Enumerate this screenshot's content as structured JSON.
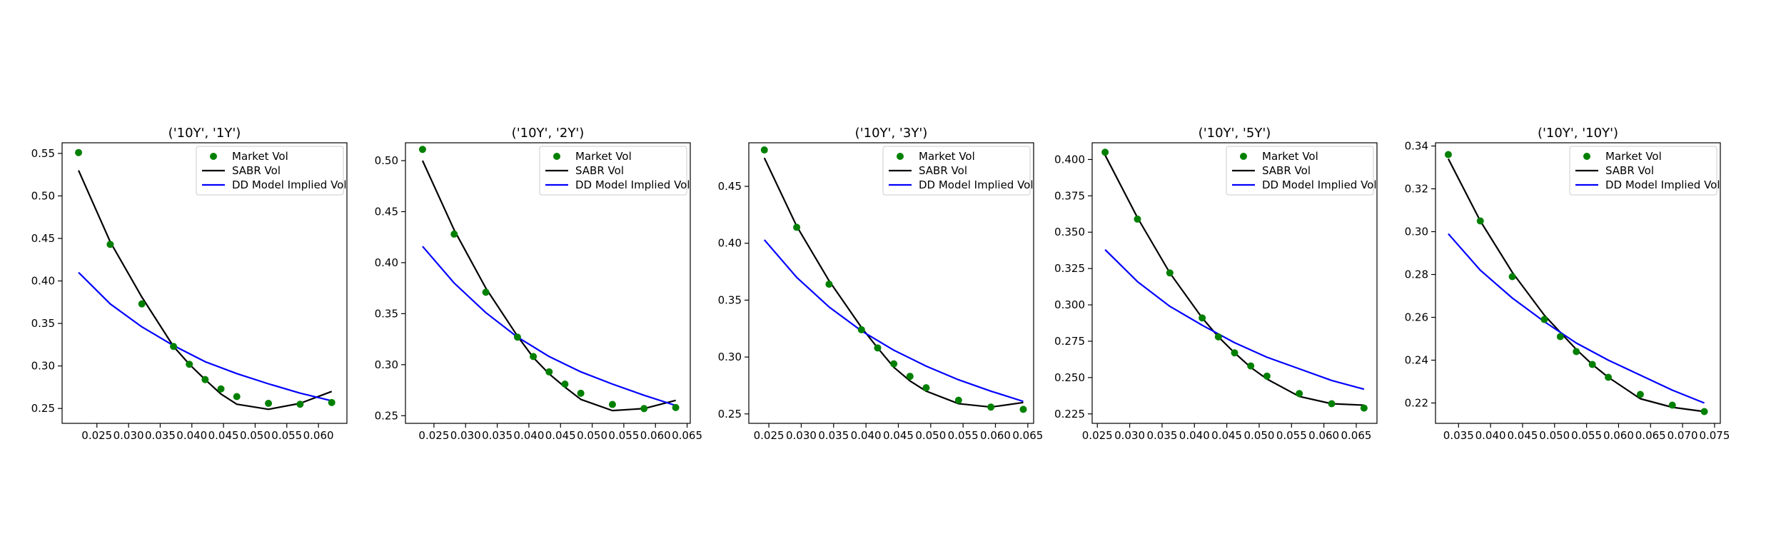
{
  "colors": {
    "market": "#008000",
    "sabr": "#000000",
    "dd": "#0000ff",
    "axes": "#000000",
    "background": "#ffffff"
  },
  "legend": {
    "placement": "upper-right",
    "entries": [
      "Market Vol",
      "SABR Vol",
      "DD Model Implied Vol"
    ]
  },
  "chart_data": [
    {
      "type": "line",
      "title": "('10Y', '1Y')",
      "xlabel": "",
      "ylabel": "",
      "xlim": [
        0.0195,
        0.0645
      ],
      "ylim": [
        0.2325,
        0.5625
      ],
      "xticks": [
        0.025,
        0.03,
        0.035,
        0.04,
        0.045,
        0.05,
        0.055,
        0.06
      ],
      "xtick_labels": [
        "0.025",
        "0.030",
        "0.035",
        "0.040",
        "0.045",
        "0.050",
        "0.055",
        "0.060"
      ],
      "yticks": [
        0.25,
        0.3,
        0.35,
        0.4,
        0.45,
        0.5,
        0.55
      ],
      "ytick_labels": [
        "0.25",
        "0.30",
        "0.35",
        "0.40",
        "0.45",
        "0.50",
        "0.55"
      ],
      "series": [
        {
          "name": "Market Vol",
          "kind": "scatter",
          "x": [
            0.0221,
            0.0271,
            0.0321,
            0.0371,
            0.0396,
            0.0421,
            0.0446,
            0.0471,
            0.0521,
            0.0571,
            0.0621
          ],
          "y": [
            0.551,
            0.443,
            0.373,
            0.323,
            0.302,
            0.284,
            0.273,
            0.264,
            0.256,
            0.255,
            0.257
          ]
        },
        {
          "name": "SABR Vol",
          "kind": "line",
          "x": [
            0.0221,
            0.0271,
            0.0321,
            0.0371,
            0.0396,
            0.0421,
            0.0446,
            0.0471,
            0.0521,
            0.0571,
            0.0621
          ],
          "y": [
            0.53,
            0.446,
            0.381,
            0.323,
            0.302,
            0.284,
            0.267,
            0.255,
            0.249,
            0.256,
            0.27
          ]
        },
        {
          "name": "DD Model Implied Vol",
          "kind": "line",
          "x": [
            0.0221,
            0.0271,
            0.0321,
            0.0371,
            0.0421,
            0.0471,
            0.0521,
            0.0571,
            0.0621
          ],
          "y": [
            0.41,
            0.373,
            0.346,
            0.324,
            0.305,
            0.291,
            0.279,
            0.268,
            0.259
          ]
        }
      ]
    },
    {
      "type": "line",
      "title": "('10Y', '2Y')",
      "xlabel": "",
      "ylabel": "",
      "xlim": [
        0.0205,
        0.0655
      ],
      "ylim": [
        0.2425,
        0.5175
      ],
      "xticks": [
        0.025,
        0.03,
        0.035,
        0.04,
        0.045,
        0.05,
        0.055,
        0.06,
        0.065
      ],
      "xtick_labels": [
        "0.025",
        "0.030",
        "0.035",
        "0.040",
        "0.045",
        "0.050",
        "0.055",
        "0.060",
        "0.065"
      ],
      "yticks": [
        0.25,
        0.3,
        0.35,
        0.4,
        0.45,
        0.5
      ],
      "ytick_labels": [
        "0.25",
        "0.30",
        "0.35",
        "0.40",
        "0.45",
        "0.50"
      ],
      "series": [
        {
          "name": "Market Vol",
          "kind": "scatter",
          "x": [
            0.0232,
            0.0282,
            0.0332,
            0.0382,
            0.0407,
            0.0432,
            0.0457,
            0.0482,
            0.0532,
            0.0582,
            0.0632
          ],
          "y": [
            0.511,
            0.428,
            0.371,
            0.327,
            0.308,
            0.293,
            0.281,
            0.272,
            0.261,
            0.257,
            0.258
          ]
        },
        {
          "name": "SABR Vol",
          "kind": "line",
          "x": [
            0.0232,
            0.0282,
            0.0332,
            0.0382,
            0.0407,
            0.0432,
            0.0457,
            0.0482,
            0.0532,
            0.0582,
            0.0632
          ],
          "y": [
            0.5,
            0.432,
            0.375,
            0.328,
            0.307,
            0.291,
            0.278,
            0.266,
            0.255,
            0.257,
            0.265
          ]
        },
        {
          "name": "DD Model Implied Vol",
          "kind": "line",
          "x": [
            0.0232,
            0.0282,
            0.0332,
            0.0382,
            0.0432,
            0.0482,
            0.0532,
            0.0582,
            0.0632
          ],
          "y": [
            0.416,
            0.38,
            0.351,
            0.327,
            0.308,
            0.293,
            0.281,
            0.27,
            0.26
          ]
        }
      ]
    },
    {
      "type": "line",
      "title": "('10Y', '3Y')",
      "xlabel": "",
      "ylabel": "",
      "xlim": [
        0.0219,
        0.0659
      ],
      "ylim": [
        0.2417,
        0.4883
      ],
      "xticks": [
        0.025,
        0.03,
        0.035,
        0.04,
        0.045,
        0.05,
        0.055,
        0.06,
        0.065
      ],
      "xtick_labels": [
        "0.025",
        "0.030",
        "0.035",
        "0.040",
        "0.045",
        "0.050",
        "0.055",
        "0.060",
        "0.065"
      ],
      "yticks": [
        0.25,
        0.3,
        0.35,
        0.4,
        0.45
      ],
      "ytick_labels": [
        "0.25",
        "0.30",
        "0.35",
        "0.40",
        "0.45"
      ],
      "series": [
        {
          "name": "Market Vol",
          "kind": "scatter",
          "x": [
            0.0243,
            0.0293,
            0.0343,
            0.0393,
            0.0418,
            0.0443,
            0.0468,
            0.0493,
            0.0543,
            0.0593,
            0.0643
          ],
          "y": [
            0.482,
            0.414,
            0.364,
            0.324,
            0.308,
            0.294,
            0.283,
            0.273,
            0.262,
            0.256,
            0.254
          ]
        },
        {
          "name": "SABR Vol",
          "kind": "line",
          "x": [
            0.0243,
            0.0293,
            0.0343,
            0.0393,
            0.0418,
            0.0443,
            0.0468,
            0.0493,
            0.0543,
            0.0593,
            0.0643
          ],
          "y": [
            0.475,
            0.415,
            0.367,
            0.326,
            0.308,
            0.291,
            0.279,
            0.27,
            0.259,
            0.256,
            0.26
          ]
        },
        {
          "name": "DD Model Implied Vol",
          "kind": "line",
          "x": [
            0.0243,
            0.0293,
            0.0343,
            0.0393,
            0.0443,
            0.0493,
            0.0543,
            0.0593,
            0.0643
          ],
          "y": [
            0.403,
            0.37,
            0.344,
            0.323,
            0.306,
            0.292,
            0.28,
            0.27,
            0.261
          ]
        }
      ]
    },
    {
      "type": "line",
      "title": "('10Y', '5Y')",
      "xlabel": "",
      "ylabel": "",
      "xlim": [
        0.0242,
        0.0682
      ],
      "ylim": [
        0.2185,
        0.4115
      ],
      "xticks": [
        0.025,
        0.03,
        0.035,
        0.04,
        0.045,
        0.05,
        0.055,
        0.06,
        0.065
      ],
      "xtick_labels": [
        "0.025",
        "0.030",
        "0.035",
        "0.040",
        "0.045",
        "0.050",
        "0.055",
        "0.060",
        "0.065"
      ],
      "yticks": [
        0.225,
        0.25,
        0.275,
        0.3,
        0.325,
        0.35,
        0.375,
        0.4
      ],
      "ytick_labels": [
        "0.225",
        "0.250",
        "0.275",
        "0.300",
        "0.325",
        "0.350",
        "0.375",
        "0.400"
      ],
      "series": [
        {
          "name": "Market Vol",
          "kind": "scatter",
          "x": [
            0.0262,
            0.0312,
            0.0362,
            0.0412,
            0.0437,
            0.0462,
            0.0487,
            0.0512,
            0.0562,
            0.0612,
            0.0662
          ],
          "y": [
            0.405,
            0.359,
            0.322,
            0.291,
            0.278,
            0.267,
            0.258,
            0.251,
            0.239,
            0.232,
            0.229
          ]
        },
        {
          "name": "SABR Vol",
          "kind": "line",
          "x": [
            0.0262,
            0.0312,
            0.0362,
            0.0412,
            0.0437,
            0.0462,
            0.0487,
            0.0512,
            0.0562,
            0.0612,
            0.0662
          ],
          "y": [
            0.403,
            0.36,
            0.322,
            0.291,
            0.278,
            0.267,
            0.257,
            0.249,
            0.237,
            0.232,
            0.231
          ]
        },
        {
          "name": "DD Model Implied Vol",
          "kind": "line",
          "x": [
            0.0262,
            0.0312,
            0.0362,
            0.0412,
            0.0462,
            0.0512,
            0.0562,
            0.0612,
            0.0662
          ],
          "y": [
            0.338,
            0.316,
            0.299,
            0.286,
            0.274,
            0.264,
            0.256,
            0.248,
            0.242
          ]
        }
      ]
    },
    {
      "type": "line",
      "title": "('10Y', '10Y')",
      "xlabel": "",
      "ylabel": "",
      "xlim": [
        0.0314,
        0.0759
      ],
      "ylim": [
        0.2105,
        0.3415
      ],
      "xticks": [
        0.035,
        0.04,
        0.045,
        0.05,
        0.055,
        0.06,
        0.065,
        0.07,
        0.075
      ],
      "xtick_labels": [
        "0.035",
        "0.040",
        "0.045",
        "0.050",
        "0.055",
        "0.060",
        "0.065",
        "0.070",
        "0.075"
      ],
      "yticks": [
        0.22,
        0.24,
        0.26,
        0.28,
        0.3,
        0.32,
        0.34
      ],
      "ytick_labels": [
        "0.22",
        "0.24",
        "0.26",
        "0.28",
        "0.30",
        "0.32",
        "0.34"
      ],
      "series": [
        {
          "name": "Market Vol",
          "kind": "scatter",
          "x": [
            0.0334,
            0.0384,
            0.0434,
            0.0484,
            0.0509,
            0.0534,
            0.0559,
            0.0584,
            0.0634,
            0.0684,
            0.0734
          ],
          "y": [
            0.336,
            0.305,
            0.279,
            0.259,
            0.251,
            0.244,
            0.238,
            0.232,
            0.224,
            0.219,
            0.216
          ]
        },
        {
          "name": "SABR Vol",
          "kind": "line",
          "x": [
            0.0334,
            0.0384,
            0.0434,
            0.0484,
            0.0509,
            0.0534,
            0.0559,
            0.0584,
            0.0634,
            0.0684,
            0.0734
          ],
          "y": [
            0.334,
            0.305,
            0.281,
            0.261,
            0.253,
            0.245,
            0.238,
            0.232,
            0.222,
            0.218,
            0.216
          ]
        },
        {
          "name": "DD Model Implied Vol",
          "kind": "line",
          "x": [
            0.0334,
            0.0384,
            0.0434,
            0.0484,
            0.0534,
            0.0584,
            0.0634,
            0.0684,
            0.0734
          ],
          "y": [
            0.299,
            0.282,
            0.269,
            0.258,
            0.248,
            0.24,
            0.233,
            0.226,
            0.22
          ]
        }
      ]
    }
  ]
}
